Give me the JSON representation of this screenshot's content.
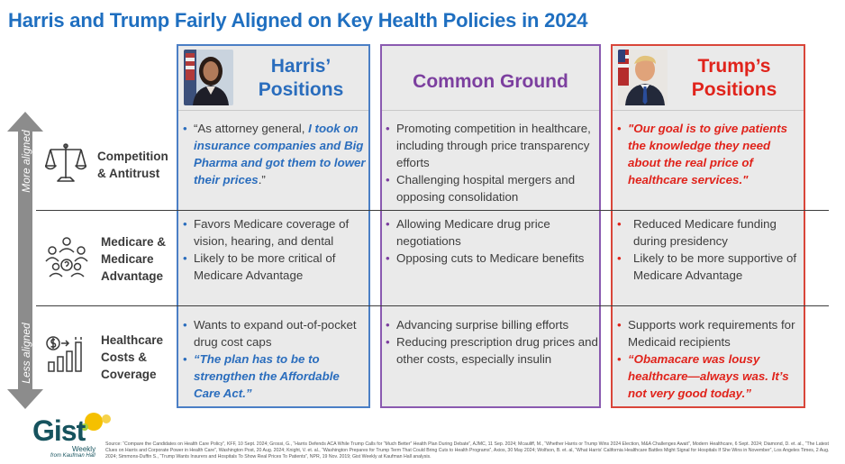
{
  "title": "Harris and Trump Fairly Aligned on Key Health Policies in 2024",
  "headers": {
    "harris": "Harris’ Positions",
    "harris_line1": "Harris’",
    "harris_line2": "Positions",
    "common": "Common Ground",
    "trump_line1": "Trump’s",
    "trump_line2": "Positions"
  },
  "axis": {
    "top": "More aligned",
    "bottom": "Less aligned"
  },
  "rows": [
    {
      "label_lines": [
        "Competition",
        "& Antitrust"
      ],
      "icon": "scales-icon",
      "harris": {
        "q_prefix": "“As attorney general, ",
        "q_emph": "I took on insurance companies and Big Pharma and got them to lower their prices",
        "q_suffix": ".”"
      },
      "common": [
        "Promoting competition in healthcare, including through price transparency efforts",
        "Challenging hospital mergers and opposing consolidation"
      ],
      "trump": {
        "quote": "\"Our goal is to give patients the knowledge they need about the real price of healthcare services.\""
      }
    },
    {
      "label_lines": [
        "Medicare &",
        "Medicare",
        "Advantage"
      ],
      "icon": "people-network-icon",
      "harris": [
        "Favors Medicare coverage of vision, hearing, and dental",
        "Likely to be more critical of Medicare Advantage"
      ],
      "common": [
        "Allowing Medicare drug price negotiations",
        "Opposing cuts to Medicare benefits"
      ],
      "trump": [
        "Reduced Medicare funding during presidency",
        "Likely to be more supportive of Medicare Advantage"
      ]
    },
    {
      "label_lines": [
        "Healthcare",
        "Costs &",
        "Coverage"
      ],
      "icon": "cost-chart-icon",
      "harris": {
        "item1": "Wants to expand out-of-pocket drug cost caps",
        "quote": "“The plan has to be to strengthen the Affordable Care Act.”"
      },
      "common": [
        "Advancing surprise billing efforts",
        "Reducing prescription drug prices and other costs, especially insulin"
      ],
      "trump": {
        "item1": "Supports work requirements for Medicaid recipients",
        "quote": "“Obamacare was lousy healthcare—always was. It’s not very good today.”"
      }
    }
  ],
  "logo": {
    "name": "Gist",
    "weekly": "Weekly",
    "from": "from Kaufman Hall"
  },
  "source": "Source: “Compare the Candidates on Health Care Policy”, KFF, 10 Sept. 2024; Grossi, G., “Harris Defends ACA While Trump Calls for “Much Better” Health Plan During Debate”, AJMC, 11 Sep. 2024; Mcauliff, M., “Whether Harris or Trump Wins 2024 Election, M&A Challenges Await”, Modern Healthcare, 6 Sept. 2024; Diamond, D. et. al., “The Latest Clues on Harris and Corporate Power in Health Care”, Washington Post, 20 Aug. 2024; Knight, V. et. al., “Washington Prepares for Trump Term That Could Bring Cuts to Health Programs”, Axios, 30 May 2024; Wolfson, B. et. al, “What Harris' California Healthcare Battles Might Signal for Hospitals If She Wins in November”, Los Angeles Times, 2 Aug. 2024; Simmons-Duffin S., “Trump Wants Insurers and Hospitals To Show Real Prices To Patients”, NPR, 19 Nov. 2019; Gist Weekly at Kaufman Hall analysis.",
  "colors": {
    "harris": "#2a6dbd",
    "common": "#7c3f9f",
    "trump": "#e0231b",
    "title": "#1f6fc0"
  }
}
